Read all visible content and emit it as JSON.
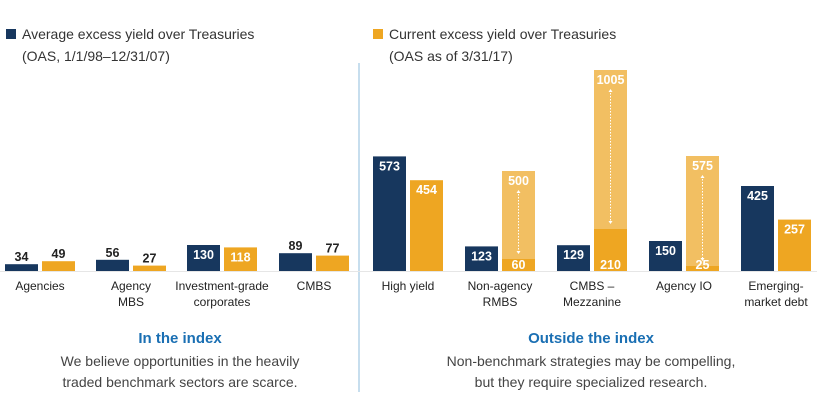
{
  "chart_data": {
    "type": "bar",
    "title": "",
    "xlabel": "",
    "ylabel": "",
    "ylim": [
      0,
      1005
    ],
    "grid": false,
    "legend_placement": "top",
    "series": [
      {
        "name": "Average excess yield over Treasuries",
        "subtitle": "(OAS, 1/1/98–12/31/07)",
        "color": "#17375e",
        "values": [
          34,
          56,
          130,
          89,
          573,
          123,
          129,
          150,
          425
        ]
      },
      {
        "name": "Current excess yield over Treasuries",
        "subtitle": "(OAS as of 3/31/17)",
        "color": "#eea622",
        "values": [
          49,
          27,
          118,
          77,
          454,
          60,
          210,
          25,
          257
        ]
      }
    ],
    "range_series": {
      "name": "Current excess yield range upper bound",
      "color": "#f2bf62",
      "values": [
        null,
        null,
        null,
        null,
        null,
        500,
        1005,
        575,
        null
      ]
    },
    "categories": [
      [
        "Agencies"
      ],
      [
        "Agency",
        "MBS"
      ],
      [
        "Investment-grade",
        "corporates"
      ],
      [
        "CMBS"
      ],
      [
        "High yield"
      ],
      [
        "Non-agency",
        "RMBS"
      ],
      [
        "CMBS –",
        "Mezzanine"
      ],
      [
        "Agency IO"
      ],
      [
        "Emerging-",
        "market debt"
      ]
    ],
    "groups": [
      {
        "title": "In the index",
        "description": [
          "We believe opportunities in the heavily",
          "traded benchmark sectors are scarce."
        ],
        "categories": [
          0,
          1,
          2,
          3
        ]
      },
      {
        "title": "Outside the index",
        "description": [
          "Non-benchmark strategies may be compelling,",
          "but they require specialized research."
        ],
        "categories": [
          4,
          5,
          6,
          7,
          8
        ]
      }
    ]
  },
  "colors": {
    "divider": "#8fbcdc",
    "title": "#1a6fb3"
  }
}
